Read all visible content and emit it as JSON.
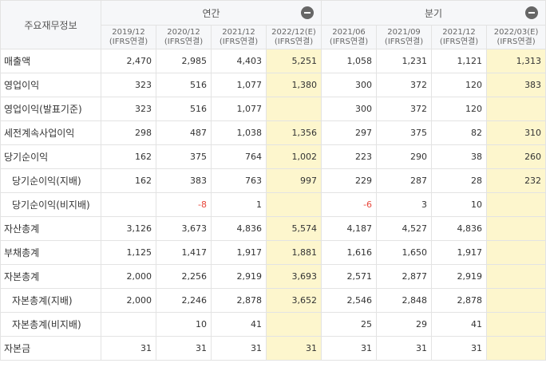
{
  "header": {
    "corner_label": "주요재무정보",
    "annual_label": "연간",
    "quarterly_label": "분기",
    "periods": [
      {
        "main": "2019/12",
        "sub": "(IFRS연결)"
      },
      {
        "main": "2020/12",
        "sub": "(IFRS연결)"
      },
      {
        "main": "2021/12",
        "sub": "(IFRS연결)"
      },
      {
        "main": "2022/12(E)",
        "sub": "(IFRS연결)"
      },
      {
        "main": "2021/06",
        "sub": "(IFRS연결)"
      },
      {
        "main": "2021/09",
        "sub": "(IFRS연결)"
      },
      {
        "main": "2021/12",
        "sub": "(IFRS연결)"
      },
      {
        "main": "2022/03(E)",
        "sub": "(IFRS연결)"
      }
    ]
  },
  "rows": [
    {
      "label": "매출액",
      "sub": false,
      "values": [
        "2,470",
        "2,985",
        "4,403",
        "5,251",
        "1,058",
        "1,231",
        "1,121",
        "1,313"
      ]
    },
    {
      "label": "영업이익",
      "sub": false,
      "values": [
        "323",
        "516",
        "1,077",
        "1,380",
        "300",
        "372",
        "120",
        "383"
      ]
    },
    {
      "label": "영업이익(발표기준)",
      "sub": false,
      "values": [
        "323",
        "516",
        "1,077",
        "",
        "300",
        "372",
        "120",
        ""
      ]
    },
    {
      "label": "세전계속사업이익",
      "sub": false,
      "values": [
        "298",
        "487",
        "1,038",
        "1,356",
        "297",
        "375",
        "82",
        "310"
      ]
    },
    {
      "label": "당기순이익",
      "sub": false,
      "values": [
        "162",
        "375",
        "764",
        "1,002",
        "223",
        "290",
        "38",
        "260"
      ]
    },
    {
      "label": "당기순이익(지배)",
      "sub": true,
      "values": [
        "162",
        "383",
        "763",
        "997",
        "229",
        "287",
        "28",
        "232"
      ]
    },
    {
      "label": "당기순이익(비지배)",
      "sub": true,
      "values": [
        "",
        "-8",
        "1",
        "",
        "-6",
        "3",
        "10",
        ""
      ]
    },
    {
      "label": "자산총계",
      "sub": false,
      "values": [
        "3,126",
        "3,673",
        "4,836",
        "5,574",
        "4,187",
        "4,527",
        "4,836",
        ""
      ]
    },
    {
      "label": "부채총계",
      "sub": false,
      "values": [
        "1,125",
        "1,417",
        "1,917",
        "1,881",
        "1,616",
        "1,650",
        "1,917",
        ""
      ]
    },
    {
      "label": "자본총계",
      "sub": false,
      "values": [
        "2,000",
        "2,256",
        "2,919",
        "3,693",
        "2,571",
        "2,877",
        "2,919",
        ""
      ]
    },
    {
      "label": "자본총계(지배)",
      "sub": true,
      "values": [
        "2,000",
        "2,246",
        "2,878",
        "3,652",
        "2,546",
        "2,848",
        "2,878",
        ""
      ]
    },
    {
      "label": "자본총계(비지배)",
      "sub": true,
      "values": [
        "",
        "10",
        "41",
        "",
        "25",
        "29",
        "41",
        ""
      ]
    },
    {
      "label": "자본금",
      "sub": false,
      "values": [
        "31",
        "31",
        "31",
        "31",
        "31",
        "31",
        "31",
        ""
      ]
    }
  ],
  "colors": {
    "estimate_bg": "#fdf6cd",
    "negative": "#e8473b"
  }
}
